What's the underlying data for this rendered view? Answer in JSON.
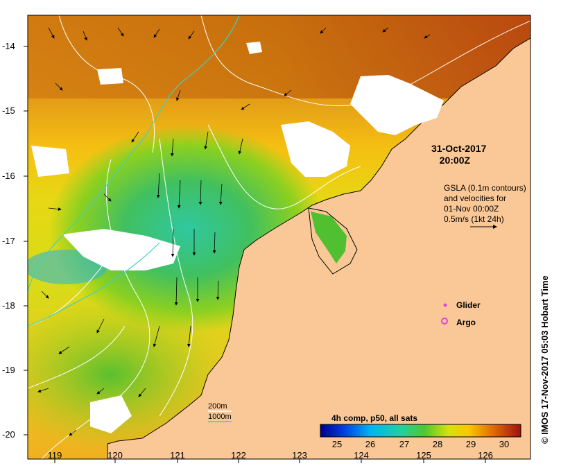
{
  "map": {
    "timestamp_line1": "31-Oct-2017",
    "timestamp_line2": "20:00Z",
    "gsla_lines": [
      "GSLA (0.1m contours)",
      "and velocities for",
      "01-Nov 00:00Z",
      "0.5m/s (1kt 24h)"
    ],
    "legend": {
      "glider": "Glider",
      "argo": "Argo"
    },
    "credit": "© IMOS 17-Nov-2017 05:03 Hobart Time",
    "depth_contours": {
      "shallow": "200m",
      "deep": "1000m"
    },
    "lat_labels": [
      "-14",
      "-15",
      "-16",
      "-17",
      "-18",
      "-19",
      "-20"
    ],
    "lon_labels": [
      "119",
      "120",
      "121",
      "122",
      "123",
      "124",
      "125",
      "126"
    ],
    "colorbar": {
      "title": "4h comp, p50, all sats",
      "ticks": [
        "25",
        "26",
        "27",
        "28",
        "29",
        "30"
      ],
      "min": 24.5,
      "max": 30.5
    },
    "colors": {
      "land": "#fac896",
      "cloud": "#ffffff",
      "contour_200m": "#ffffff",
      "contour_1000m": "#40d0c0",
      "glider": "#e040e0",
      "argo": "#e040e0"
    }
  }
}
